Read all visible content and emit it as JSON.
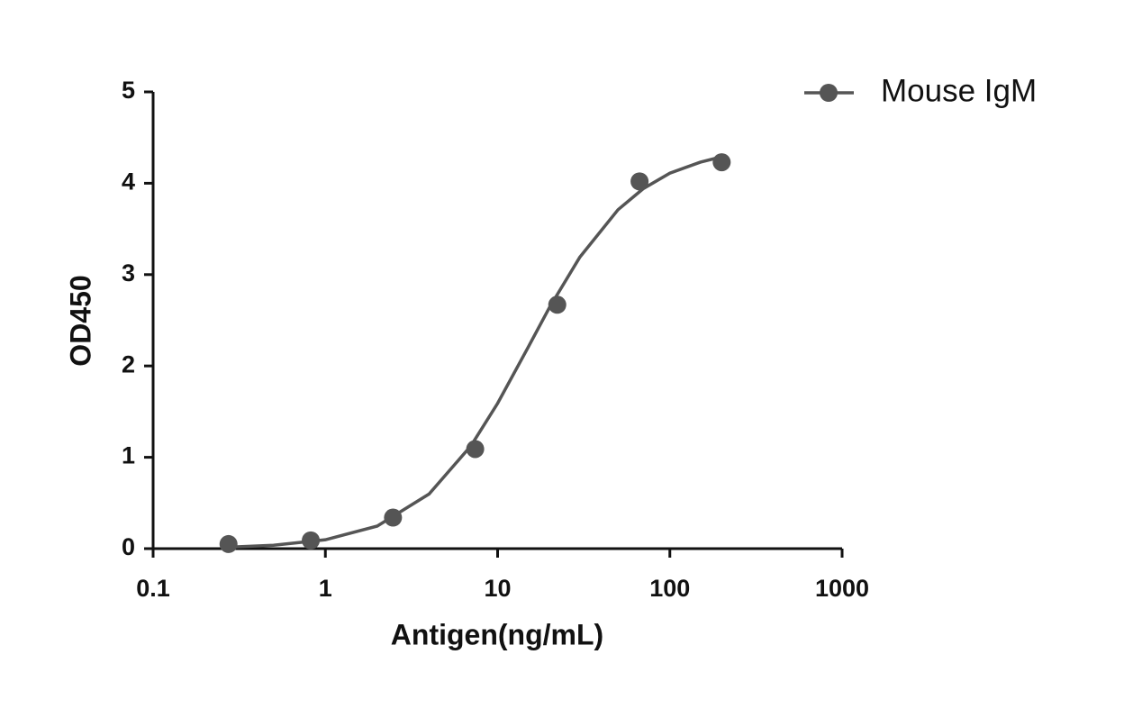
{
  "chart_data": {
    "type": "scatter",
    "x_label": "Antigen(ng/mL)",
    "y_label": "OD450",
    "x_log": true,
    "xlim": [
      0.1,
      1000
    ],
    "xticks": [
      0.1,
      1,
      10,
      100,
      1000
    ],
    "ylim": [
      0,
      5
    ],
    "yticks": [
      0,
      1,
      2,
      3,
      4,
      5
    ],
    "legend": "top-right",
    "series": [
      {
        "name": "Mouse IgM",
        "color": "#555555",
        "x": [
          0.274,
          0.823,
          2.47,
          7.41,
          22.2,
          66.7,
          200
        ],
        "values": [
          0.05,
          0.09,
          0.34,
          1.09,
          2.67,
          4.02,
          4.23
        ],
        "fit_x": [
          0.274,
          0.5,
          1,
          2,
          4,
          7,
          10,
          15,
          20,
          30,
          50,
          70,
          100,
          150,
          200
        ],
        "fit_values": [
          0.016,
          0.037,
          0.097,
          0.247,
          0.598,
          1.125,
          1.59,
          2.2,
          2.64,
          3.19,
          3.71,
          3.94,
          4.11,
          4.23,
          4.29
        ]
      }
    ]
  }
}
